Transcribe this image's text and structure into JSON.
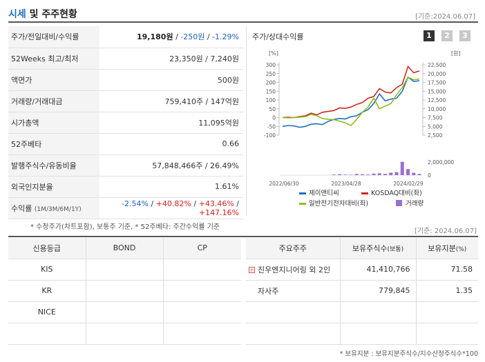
{
  "header": {
    "title_accent": "시세",
    "title_rest": " 및 주주현황",
    "date": "[기준:2024.06.07]"
  },
  "summary_table": [
    {
      "label": "주가/전일대비/수익률"
    },
    {
      "label": "52Weeks 최고/최저",
      "value": "23,350원 / 7,240원"
    },
    {
      "label": "액면가",
      "value": "500원"
    },
    {
      "label": "거래량/거래대금",
      "value": "759,410주 / 147억원"
    },
    {
      "label": "시가총액",
      "value": "11,095억원"
    },
    {
      "label": "52주베타",
      "value": "0.66"
    },
    {
      "label": "발행주식수/유동비율",
      "value": "57,848,466주 / 26.49%"
    },
    {
      "label": "외국인지분율",
      "value": "1.61%"
    },
    {
      "label": "수익률",
      "label_small": "(1M/3M/6M/1Y)"
    }
  ],
  "price": {
    "value": "19,180원",
    "sep1": " / ",
    "change": "-250원",
    "sep2": " / ",
    "rate": "-1.29%"
  },
  "returns": {
    "r1m": "-2.54%",
    "r3m": "+40.82%",
    "r6m": "+43.46%",
    "r1y": "+147.16%",
    "sep": "/"
  },
  "notes": {
    "left": "* 수정주가(차트포함), 보통주 기준, * 52주베타: 주간수익률 기준",
    "right": "[기준: 2024.06.07]",
    "bottom": "* 보유지분 : 보유지분주식수/지수산정주식수*100"
  },
  "chart_panel": {
    "title": "주가/상대수익률",
    "pages": [
      "1",
      "2",
      "3"
    ],
    "active_page": "1"
  },
  "chart_data": {
    "type": "line",
    "left_unit": "[%]",
    "right_unit": "[원]",
    "left_ticks": [
      "300",
      "250",
      "200",
      "150",
      "100",
      "50",
      "0",
      "-50",
      "-100"
    ],
    "right_ticks": [
      "22,500",
      "20,000",
      "17,500",
      "15,000",
      "12,500",
      "10,000",
      "7,500",
      "5,000",
      "2,500"
    ],
    "volume_ticks": [
      "2,000,000",
      "0"
    ],
    "x_ticks": [
      "2022/06/30",
      "2023/04/28",
      "2024/02/29"
    ],
    "ylim": [
      -100,
      300
    ],
    "volume_max": 2500000,
    "series": [
      {
        "name": "제이앤티씨",
        "color": "#1f6fbf",
        "values": [
          -50,
          -45,
          -48,
          -55,
          -50,
          -38,
          -35,
          -40,
          -22,
          -10,
          -5,
          -8,
          5,
          10,
          30,
          45,
          80,
          135,
          95,
          105,
          110,
          150,
          230,
          205,
          210
        ]
      },
      {
        "name": "KOSDAQ대비(좌)",
        "color": "#cc2a1e",
        "values": [
          0,
          2,
          0,
          5,
          10,
          25,
          15,
          30,
          35,
          40,
          55,
          52,
          60,
          75,
          85,
          110,
          120,
          165,
          145,
          140,
          170,
          190,
          290,
          255,
          265
        ]
      },
      {
        "name": "일반전기전자대비(좌)",
        "color": "#8fbc21",
        "values": [
          0,
          -2,
          0,
          2,
          5,
          18,
          10,
          -5,
          -10,
          -12,
          -20,
          -30,
          -45,
          -10,
          30,
          60,
          110,
          50,
          65,
          80,
          130,
          170,
          230,
          215,
          220
        ]
      }
    ],
    "volume": {
      "name": "거래량",
      "color": "#9a6fcf",
      "values": [
        0,
        0,
        0,
        0,
        0,
        0,
        0,
        0,
        0,
        100000,
        150000,
        80000,
        60000,
        200000,
        150000,
        100000,
        250000,
        300000,
        200000,
        400000,
        500000,
        2200000,
        1000000,
        400000,
        200000
      ]
    }
  },
  "rating_table": {
    "headers": [
      "신용등급",
      "BOND",
      "CP"
    ],
    "rows": [
      [
        "KIS",
        "",
        ""
      ],
      [
        "KR",
        "",
        ""
      ],
      [
        "NICE",
        "",
        ""
      ],
      [
        "",
        "",
        ""
      ]
    ]
  },
  "holder_table": {
    "headers": [
      "주요주주",
      "보유주식수",
      "(보통)",
      "보유지분",
      "(%)"
    ],
    "rows": [
      {
        "name": "진우엔지니어링 외 2인",
        "shares": "41,410,766",
        "pct": "71.58",
        "expandable": true
      },
      {
        "name": "자사주",
        "shares": "779,845",
        "pct": "1.35",
        "expandable": false
      },
      {
        "name": "",
        "shares": "",
        "pct": ""
      },
      {
        "name": "",
        "shares": "",
        "pct": ""
      }
    ]
  }
}
